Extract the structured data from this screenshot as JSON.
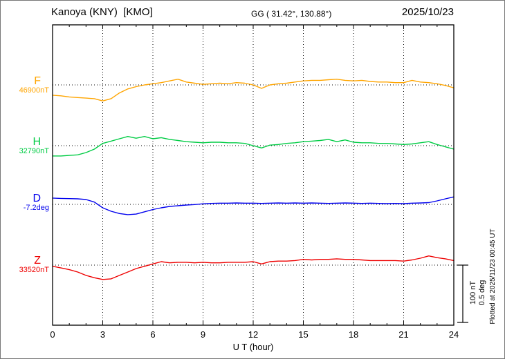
{
  "header": {
    "station": "Kanoya (KNY)  [KMO]",
    "coords": "GG ( 31.42°, 130.88°)",
    "date": "2025/10/23"
  },
  "scalebar": {
    "nt_label": "100 nT",
    "deg_label": "0.5 deg"
  },
  "footer_note": "Plotted at 2025/11/23 00:45 UT",
  "chart_data": {
    "type": "line",
    "title": "Kanoya (KNY) [KMO] magnetogram 2025/10/23",
    "xlabel": "U T (hour)",
    "xlim": [
      0,
      24
    ],
    "xticks": [
      0,
      3,
      6,
      9,
      12,
      15,
      18,
      21,
      24
    ],
    "grid": "dotted vertical at 3-hour intervals, dotted horizontal baseline per component",
    "scale": {
      "nT_per_bar": 100,
      "deg_per_bar": 0.5
    },
    "x_hours": [
      0,
      0.5,
      1,
      1.5,
      2,
      2.5,
      3,
      3.5,
      4,
      4.5,
      5,
      5.5,
      6,
      6.5,
      7,
      7.5,
      8,
      8.5,
      9,
      9.5,
      10,
      10.5,
      11,
      11.5,
      12,
      12.5,
      13,
      13.5,
      14,
      14.5,
      15,
      15.5,
      16,
      16.5,
      17,
      17.5,
      18,
      18.5,
      19,
      19.5,
      20,
      20.5,
      21,
      21.5,
      22,
      22.5,
      23,
      23.5,
      24
    ],
    "series": [
      {
        "name": "F",
        "unit": "nT",
        "baseline": 46900,
        "value_label": "46900nT",
        "color": "#ffa500",
        "offsets": [
          -18,
          -19,
          -21,
          -22,
          -23,
          -24,
          -28,
          -24,
          -14,
          -7,
          -3,
          0,
          2,
          4,
          7,
          10,
          5,
          3,
          1,
          2,
          3,
          2,
          4,
          3,
          0,
          -6,
          0,
          2,
          3,
          5,
          7,
          8,
          8,
          9,
          10,
          8,
          7,
          8,
          6,
          5,
          5,
          4,
          4,
          8,
          5,
          4,
          2,
          -1,
          -5
        ]
      },
      {
        "name": "H",
        "unit": "nT",
        "baseline": 32790,
        "value_label": "32790nT",
        "color": "#00cc44",
        "offsets": [
          -18,
          -18,
          -17,
          -16,
          -12,
          -6,
          4,
          8,
          12,
          16,
          13,
          16,
          12,
          14,
          11,
          9,
          7,
          6,
          5,
          6,
          6,
          5,
          5,
          4,
          0,
          -4,
          1,
          2,
          4,
          5,
          7,
          8,
          9,
          11,
          7,
          10,
          6,
          5,
          5,
          4,
          4,
          3,
          2,
          3,
          5,
          7,
          2,
          -2,
          -6
        ]
      },
      {
        "name": "D",
        "unit": "deg",
        "baseline": -7.2,
        "value_label": "-7.2deg",
        "color": "#0000ee",
        "offsets": [
          0.055,
          0.052,
          0.05,
          0.048,
          0.042,
          0.02,
          -0.03,
          -0.06,
          -0.08,
          -0.09,
          -0.085,
          -0.065,
          -0.045,
          -0.03,
          -0.018,
          -0.012,
          -0.006,
          -0.002,
          0.005,
          0.008,
          0.01,
          0.01,
          0.012,
          0.01,
          0.01,
          0.008,
          0.01,
          0.012,
          0.01,
          0.012,
          0.01,
          0.012,
          0.01,
          0.008,
          0.01,
          0.012,
          0.01,
          0.008,
          0.01,
          0.008,
          0.006,
          0.008,
          0.006,
          0.01,
          0.012,
          0.015,
          0.03,
          0.048,
          0.065
        ]
      },
      {
        "name": "Z",
        "unit": "nT",
        "baseline": 33520,
        "value_label": "33520nT",
        "color": "#ee0000",
        "offsets": [
          -2,
          -5,
          -8,
          -12,
          -18,
          -22,
          -25,
          -24,
          -18,
          -12,
          -6,
          -2,
          2,
          6,
          4,
          5,
          5,
          4,
          5,
          4,
          4,
          5,
          5,
          5,
          6,
          2,
          6,
          7,
          7,
          8,
          10,
          9,
          10,
          10,
          11,
          10,
          10,
          9,
          8,
          8,
          8,
          8,
          7,
          9,
          12,
          16,
          13,
          11,
          8
        ]
      }
    ]
  }
}
